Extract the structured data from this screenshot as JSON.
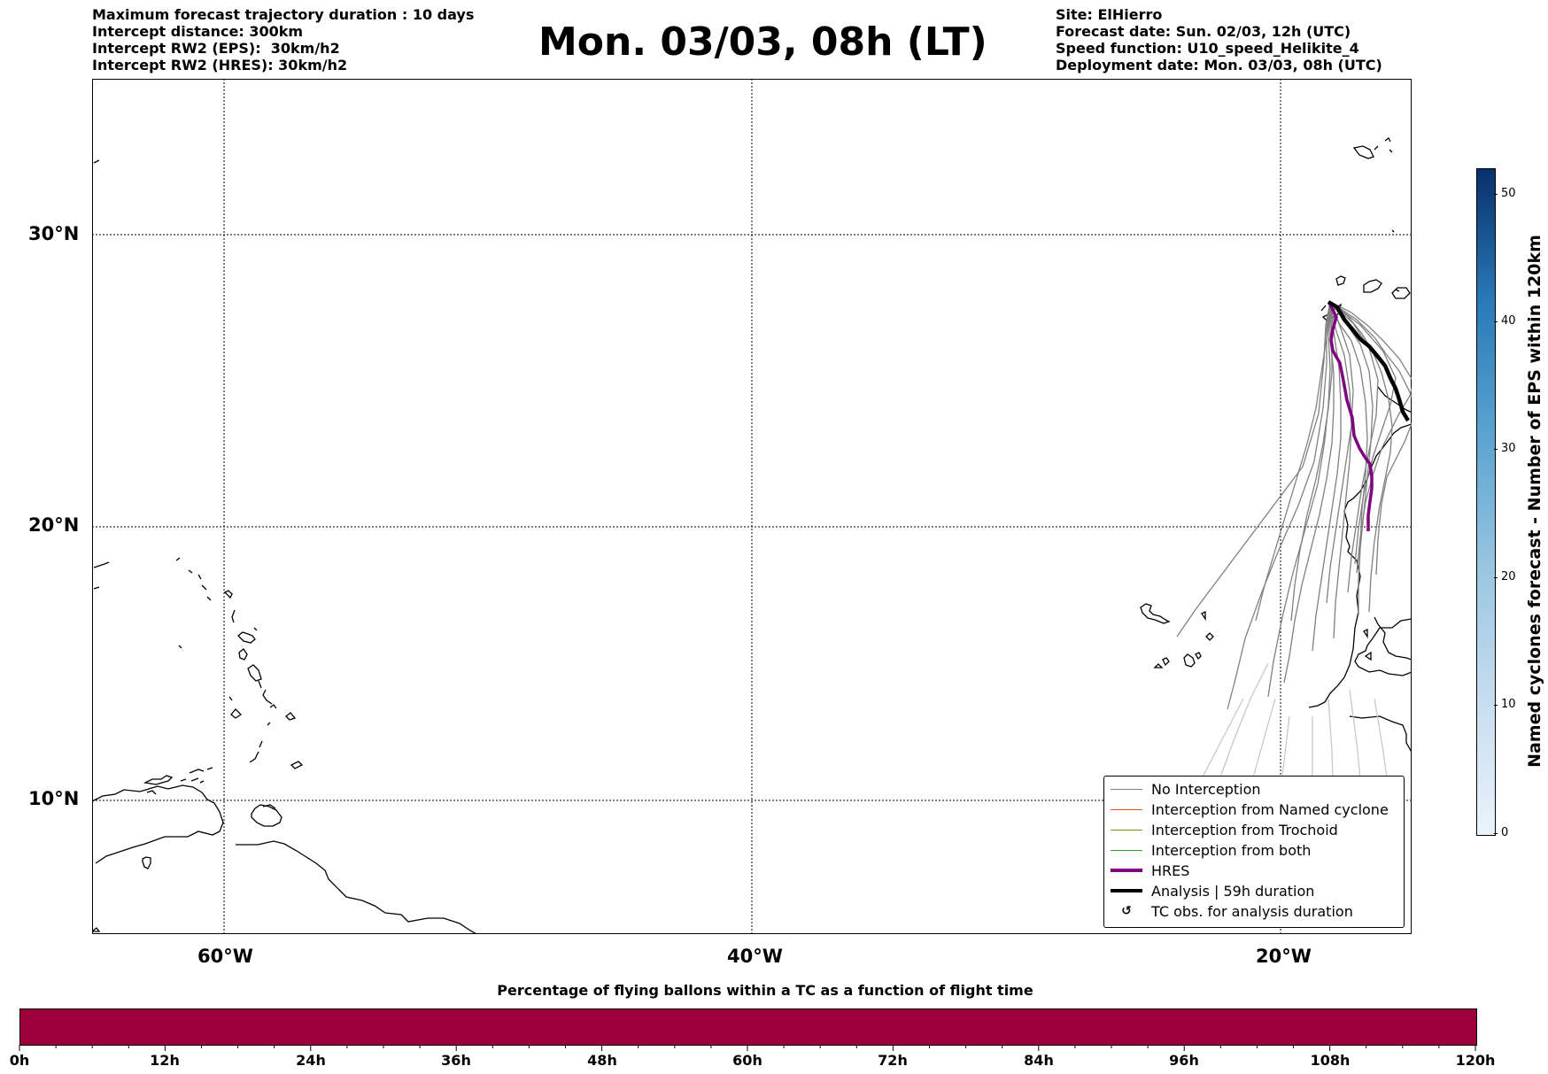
{
  "header": {
    "left_lines": [
      "Maximum forecast trajectory duration : 10 days",
      "Intercept distance: 300km",
      "Intercept RW2 (EPS):  30km/h2",
      "Intercept RW2 (HRES): 30km/h2"
    ],
    "title": "Mon. 03/03, 08h (LT)",
    "right_lines": [
      "Site: ElHierro",
      "Forecast date: Sun. 02/03, 12h (UTC)",
      "Speed function: U10_speed_Helikite_4",
      "Deployment date: Mon. 03/03, 08h (UTC)"
    ]
  },
  "map": {
    "lat_labels": [
      "30°N",
      "20°N",
      "10°N"
    ],
    "lon_labels": [
      "60°W",
      "40°W",
      "20°W"
    ]
  },
  "legend": {
    "items": [
      {
        "label": "No Interception",
        "color": "#808080"
      },
      {
        "label": "Interception from Named cyclone",
        "color": "#e8501f"
      },
      {
        "label": "Interception from Trochoid",
        "color": "#8b8b00"
      },
      {
        "label": "Interception from both",
        "color": "#2ca02c"
      },
      {
        "label": "HRES",
        "color": "#800080"
      },
      {
        "label": "Analysis | 59h duration",
        "color": "#000000"
      },
      {
        "label": "TC obs. for analysis duration",
        "symbol": "↺"
      }
    ]
  },
  "colorbar": {
    "label": "Named cyclones forecast - Number of EPS within 120km",
    "ticks": [
      "0",
      "10",
      "20",
      "30",
      "40",
      "50"
    ],
    "min": 0,
    "max": 52
  },
  "flight_time_bar": {
    "title": "Percentage of flying ballons within a TC as a function of flight time",
    "ticks": [
      "0h",
      "12h",
      "24h",
      "36h",
      "48h",
      "60h",
      "72h",
      "84h",
      "96h",
      "108h",
      "120h"
    ],
    "color": "#9b003b"
  }
}
